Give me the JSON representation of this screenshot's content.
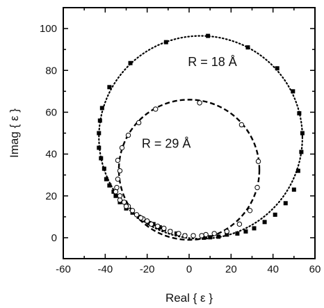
{
  "chart_data": {
    "type": "scatter",
    "title": "",
    "xlabel": "Real { ε }",
    "ylabel": "Imag { ε }",
    "xlim": [
      -60,
      60
    ],
    "ylim": [
      -10,
      110
    ],
    "x_ticks": [
      "-60",
      "-40",
      "-20",
      "0",
      "20",
      "40",
      "60"
    ],
    "y_ticks": [
      "0",
      "20",
      "40",
      "60",
      "80",
      "100"
    ],
    "grid": false,
    "annotations": [
      {
        "text": "R = 18 Å",
        "x": 12,
        "y": 84
      },
      {
        "text": "R = 29 Å",
        "x": -10,
        "y": 45
      }
    ],
    "series": [
      {
        "marker": "filled-square",
        "line": "dotted",
        "circle_fit": {
          "center": [
            5.5,
            48
          ],
          "radius": 48.5
        },
        "points": [
          [
            -42.5,
            56
          ],
          [
            -41.5,
            62
          ],
          [
            -38,
            72
          ],
          [
            -28,
            83.5
          ],
          [
            -11,
            93.5
          ],
          [
            9,
            96.5
          ],
          [
            28,
            91
          ],
          [
            42,
            81
          ],
          [
            49.5,
            70
          ],
          [
            52.5,
            59.5
          ],
          [
            54,
            50
          ],
          [
            53.5,
            41
          ],
          [
            52,
            32
          ],
          [
            50,
            23
          ],
          [
            46,
            16.5
          ],
          [
            41,
            11
          ],
          [
            36,
            7.5
          ],
          [
            31,
            4.5
          ],
          [
            27,
            3
          ],
          [
            23,
            2
          ],
          [
            18,
            1.5
          ],
          [
            14,
            0.5
          ],
          [
            10,
            0.2
          ],
          [
            7,
            0
          ],
          [
            -43,
            50
          ],
          [
            -43,
            43
          ],
          [
            -42,
            38
          ],
          [
            -40.5,
            33
          ],
          [
            -39.5,
            28
          ],
          [
            -38,
            25
          ],
          [
            -36,
            22
          ],
          [
            -35,
            20
          ],
          [
            -33,
            17
          ],
          [
            -30,
            14
          ],
          [
            -27,
            12
          ],
          [
            -24,
            10
          ],
          [
            -22,
            9
          ],
          [
            -19,
            7
          ],
          [
            -17,
            6.5
          ],
          [
            -14,
            5
          ],
          [
            -12,
            4
          ],
          [
            -9,
            3
          ],
          [
            -6,
            2
          ],
          [
            -2,
            1
          ]
        ]
      },
      {
        "marker": "open-circle",
        "line": "dashed",
        "circle_fit": {
          "center": [
            0,
            32.5
          ],
          "radius": 33.5
        },
        "points": [
          [
            -16,
            61.5
          ],
          [
            5,
            64.5
          ],
          [
            25,
            54
          ],
          [
            33,
            36.5
          ],
          [
            32.5,
            24
          ],
          [
            29,
            13
          ],
          [
            24,
            6.5
          ],
          [
            18,
            3
          ],
          [
            12,
            2
          ],
          [
            8,
            1.5
          ],
          [
            6,
            1
          ],
          [
            2,
            1
          ],
          [
            -2,
            1
          ],
          [
            -5,
            2
          ],
          [
            -9,
            3
          ],
          [
            -12,
            4.5
          ],
          [
            -15,
            5.5
          ],
          [
            -18,
            6.5
          ],
          [
            -20,
            8
          ],
          [
            -22,
            9
          ],
          [
            -23,
            9.5
          ],
          [
            -25,
            11
          ],
          [
            -27,
            13
          ],
          [
            -29,
            15
          ],
          [
            -31,
            17
          ],
          [
            -33,
            20
          ],
          [
            -34.5,
            24
          ],
          [
            -34,
            28
          ],
          [
            -33,
            32
          ],
          [
            -34,
            37
          ],
          [
            -32,
            43
          ],
          [
            -29,
            49
          ],
          [
            -24,
            55
          ],
          [
            -35,
            22
          ],
          [
            -33,
            18
          ],
          [
            -30,
            15
          ]
        ]
      }
    ]
  }
}
